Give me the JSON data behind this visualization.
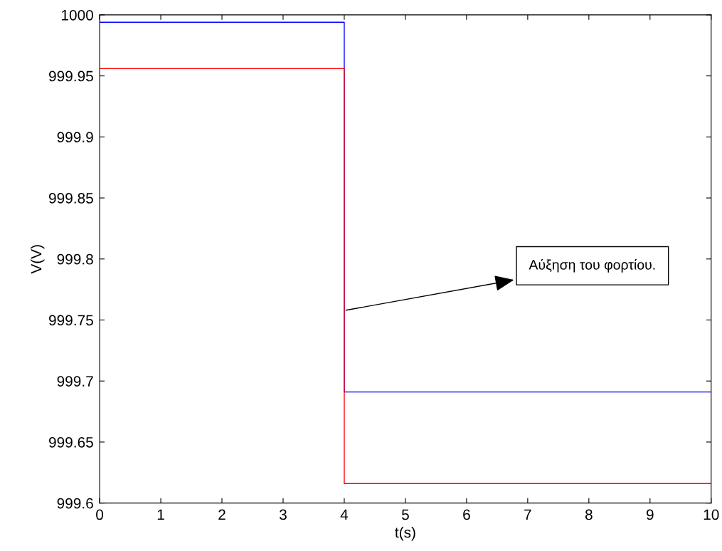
{
  "chart_data": {
    "type": "step",
    "xlabel": "t(s)",
    "ylabel": "V(V)",
    "series": [
      {
        "color": "#0000ff",
        "x": [
          0,
          4,
          10
        ],
        "values": [
          999.994,
          999.691,
          999.691
        ]
      },
      {
        "color": "#ff0000",
        "x": [
          0,
          4,
          10
        ],
        "values": [
          999.956,
          999.616,
          999.616
        ]
      }
    ],
    "xlim": [
      0,
      10
    ],
    "xticks": [
      0,
      1,
      2,
      3,
      4,
      5,
      6,
      7,
      8,
      9,
      10
    ],
    "ylim": [
      999.6,
      1000
    ],
    "yticks": [
      999.6,
      999.65,
      999.7,
      999.75,
      999.8,
      999.85,
      999.9,
      999.95,
      1000
    ],
    "annotations": [
      {
        "text": "Αύξηση του φορτίου.",
        "x": 4.03,
        "y": 999.758
      }
    ],
    "grid": false,
    "legend": false
  }
}
